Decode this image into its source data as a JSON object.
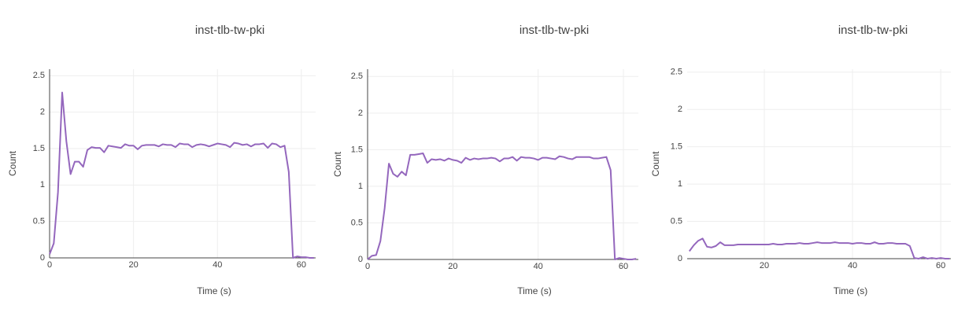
{
  "chart_data": [
    {
      "type": "line",
      "title": "inst-tlb-tw-pki",
      "x_label": "Time (s)",
      "y_label": "Count",
      "x": [
        0,
        1,
        2,
        3,
        4,
        5,
        6,
        7,
        8,
        9,
        10,
        11,
        12,
        13,
        14,
        15,
        16,
        17,
        18,
        19,
        20,
        21,
        22,
        23,
        24,
        25,
        26,
        27,
        28,
        29,
        30,
        31,
        32,
        33,
        34,
        35,
        36,
        37,
        38,
        39,
        40,
        41,
        42,
        43,
        44,
        45,
        46,
        47,
        48,
        49,
        50,
        51,
        52,
        53,
        54,
        55,
        56,
        57,
        58,
        59,
        60,
        61,
        62,
        63
      ],
      "series": [
        {
          "color": "#9467bd",
          "values": [
            0.05,
            0.2,
            0.9,
            2.27,
            1.6,
            1.15,
            1.32,
            1.32,
            1.25,
            1.48,
            1.52,
            1.51,
            1.51,
            1.45,
            1.54,
            1.53,
            1.52,
            1.51,
            1.56,
            1.54,
            1.54,
            1.49,
            1.54,
            1.55,
            1.55,
            1.55,
            1.53,
            1.56,
            1.55,
            1.55,
            1.52,
            1.57,
            1.56,
            1.56,
            1.52,
            1.55,
            1.56,
            1.55,
            1.53,
            1.55,
            1.57,
            1.56,
            1.55,
            1.52,
            1.58,
            1.57,
            1.55,
            1.56,
            1.53,
            1.56,
            1.56,
            1.57,
            1.51,
            1.57,
            1.56,
            1.52,
            1.54,
            1.18,
            0,
            0.02,
            0.01,
            0.01,
            0,
            0
          ]
        }
      ],
      "xlim": [
        0,
        63.4
      ],
      "ylim": [
        0,
        2.59
      ],
      "xticks": [
        0,
        20,
        40,
        60
      ],
      "yticks": [
        0,
        0.5,
        1,
        1.5,
        2,
        2.5
      ],
      "grid": true
    },
    {
      "type": "line",
      "title": "inst-tlb-tw-pki",
      "x_label": "Time (s)",
      "y_label": "Count",
      "x": [
        0,
        1,
        2,
        3,
        4,
        5,
        6,
        7,
        8,
        9,
        10,
        11,
        12,
        13,
        14,
        15,
        16,
        17,
        18,
        19,
        20,
        21,
        22,
        23,
        24,
        25,
        26,
        27,
        28,
        29,
        30,
        31,
        32,
        33,
        34,
        35,
        36,
        37,
        38,
        39,
        40,
        41,
        42,
        43,
        44,
        45,
        46,
        47,
        48,
        49,
        50,
        51,
        52,
        53,
        54,
        55,
        56,
        57,
        58,
        59,
        60,
        61,
        62,
        63
      ],
      "series": [
        {
          "color": "#9467bd",
          "values": [
            0,
            0.05,
            0.06,
            0.25,
            0.7,
            1.31,
            1.17,
            1.13,
            1.2,
            1.15,
            1.43,
            1.43,
            1.44,
            1.45,
            1.32,
            1.37,
            1.36,
            1.37,
            1.35,
            1.38,
            1.36,
            1.35,
            1.32,
            1.39,
            1.36,
            1.38,
            1.37,
            1.38,
            1.38,
            1.39,
            1.38,
            1.34,
            1.38,
            1.38,
            1.4,
            1.35,
            1.4,
            1.39,
            1.39,
            1.38,
            1.36,
            1.39,
            1.39,
            1.38,
            1.37,
            1.41,
            1.4,
            1.38,
            1.37,
            1.4,
            1.4,
            1.4,
            1.4,
            1.38,
            1.38,
            1.39,
            1.4,
            1.22,
            0,
            0.02,
            0.01,
            0,
            0,
            0.01
          ]
        }
      ],
      "xlim": [
        0,
        63.5
      ],
      "ylim": [
        0,
        2.6
      ],
      "xticks": [
        0,
        20,
        40,
        60
      ],
      "yticks": [
        0,
        0.5,
        1,
        1.5,
        2,
        2.5
      ],
      "grid": true
    },
    {
      "type": "line",
      "title": "inst-tlb-tw-pki",
      "x_label": "Time (s)",
      "y_label": "Count",
      "x": [
        3,
        4,
        5,
        6,
        7,
        8,
        9,
        10,
        11,
        12,
        13,
        14,
        15,
        16,
        17,
        18,
        19,
        20,
        21,
        22,
        23,
        24,
        25,
        26,
        27,
        28,
        29,
        30,
        31,
        32,
        33,
        34,
        35,
        36,
        37,
        38,
        39,
        40,
        41,
        42,
        43,
        44,
        45,
        46,
        47,
        48,
        49,
        50,
        51,
        52,
        53,
        54,
        55,
        56,
        57,
        58,
        59,
        60,
        61,
        62
      ],
      "series": [
        {
          "color": "#9467bd",
          "values": [
            0.1,
            0.18,
            0.24,
            0.27,
            0.16,
            0.15,
            0.17,
            0.22,
            0.18,
            0.18,
            0.18,
            0.19,
            0.19,
            0.19,
            0.19,
            0.19,
            0.19,
            0.19,
            0.19,
            0.2,
            0.19,
            0.19,
            0.2,
            0.2,
            0.2,
            0.21,
            0.2,
            0.2,
            0.21,
            0.22,
            0.21,
            0.21,
            0.21,
            0.22,
            0.21,
            0.21,
            0.21,
            0.2,
            0.21,
            0.21,
            0.2,
            0.2,
            0.22,
            0.2,
            0.2,
            0.21,
            0.21,
            0.2,
            0.2,
            0.2,
            0.17,
            0.01,
            0,
            0.02,
            0,
            0.01,
            0,
            0.01,
            0,
            0
          ]
        }
      ],
      "xlim": [
        2.5,
        62.3
      ],
      "ylim": [
        0,
        2.54
      ],
      "xticks": [
        20,
        40,
        60
      ],
      "yticks": [
        0,
        0.5,
        1,
        1.5,
        2,
        2.5
      ],
      "grid": true
    }
  ]
}
